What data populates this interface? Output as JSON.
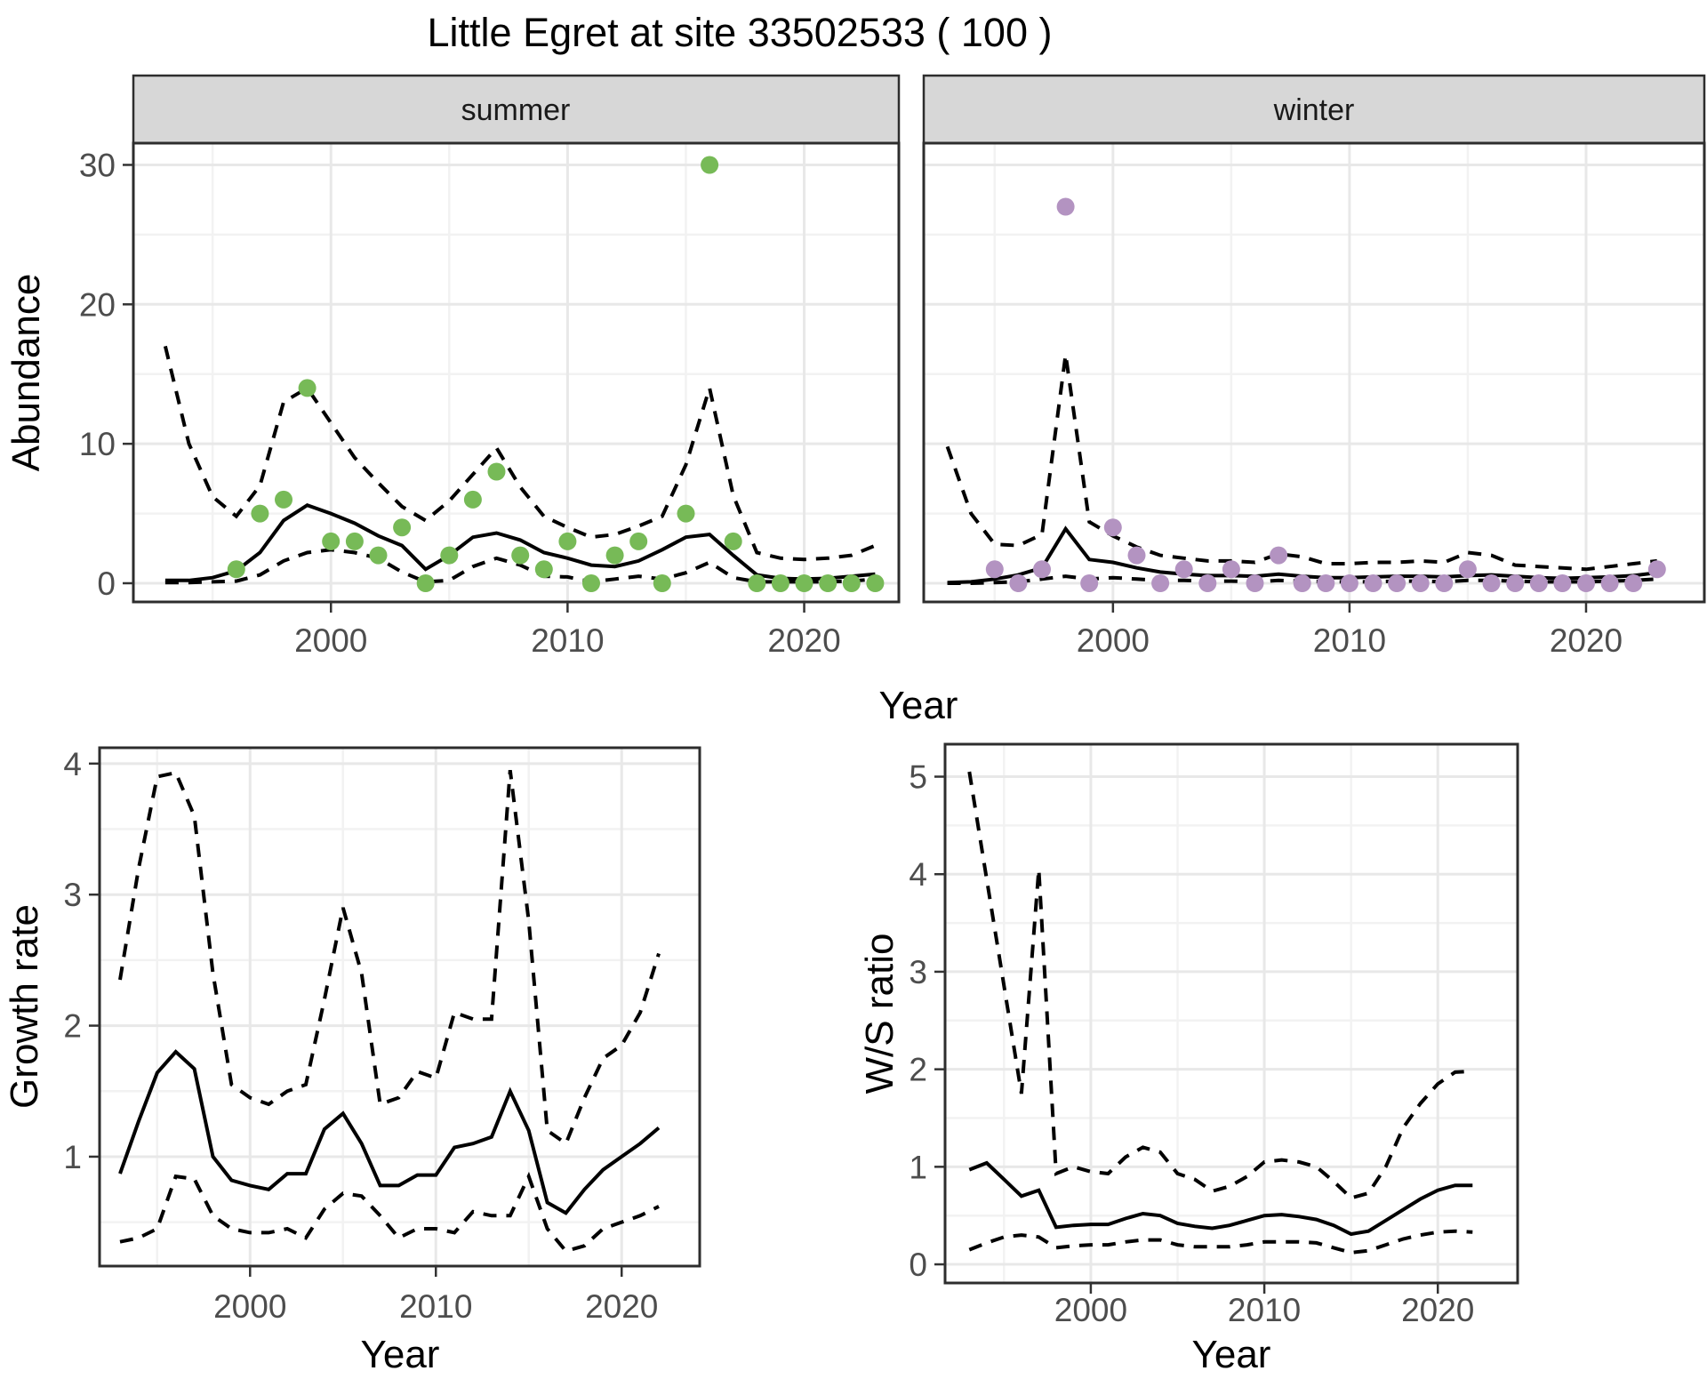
{
  "title": "Little Egret at site 33502533 ( 100 )",
  "colors": {
    "summer_points": "#77ba57",
    "winter_points": "#b393c1",
    "median_line": "#000000",
    "ci_line": "#000000",
    "strip_background": "#d7d7d7",
    "panel_border": "#2d2d2d",
    "grid_major": "#e8e8e8",
    "grid_minor": "#f2f2f2",
    "tick_text": "#4d4d4d"
  },
  "chart_data": [
    {
      "type": "line+scatter",
      "facet_label": "summer",
      "xlabel": "Year",
      "ylabel": "Abundance",
      "xticks": [
        2000,
        2010,
        2020
      ],
      "xminor": [
        1995,
        2005,
        2015
      ],
      "yticks": [
        0,
        10,
        20,
        30
      ],
      "yminor": [
        5,
        15,
        25
      ],
      "ylim": [
        0,
        30
      ],
      "point_color": "#77ba57",
      "points": {
        "x": [
          1996,
          1997,
          1998,
          1999,
          2000,
          2001,
          2002,
          2003,
          2004,
          2005,
          2006,
          2007,
          2008,
          2009,
          2010,
          2011,
          2012,
          2013,
          2014,
          2015,
          2016,
          2017,
          2018,
          2019,
          2020,
          2021,
          2022,
          2023
        ],
        "y": [
          1,
          5,
          6,
          14,
          3,
          3,
          2,
          4,
          0,
          2,
          6,
          8,
          2,
          1,
          3,
          0,
          2,
          3,
          0,
          5,
          30,
          3,
          0,
          0,
          0,
          0,
          0,
          0
        ]
      },
      "line_x": [
        1993,
        1994,
        1995,
        1996,
        1997,
        1998,
        1999,
        2000,
        2001,
        2002,
        2003,
        2004,
        2005,
        2006,
        2007,
        2008,
        2009,
        2010,
        2011,
        2012,
        2013,
        2014,
        2015,
        2016,
        2017,
        2018,
        2019,
        2020,
        2021,
        2022,
        2023
      ],
      "median": [
        0.2,
        0.2,
        0.4,
        0.9,
        2.2,
        4.5,
        5.6,
        5.0,
        4.3,
        3.4,
        2.7,
        1.0,
        2.0,
        3.3,
        3.6,
        3.1,
        2.2,
        1.8,
        1.3,
        1.2,
        1.6,
        2.4,
        3.3,
        3.5,
        2.0,
        0.6,
        0.35,
        0.3,
        0.35,
        0.5,
        0.65
      ],
      "upper": [
        17,
        10,
        6.2,
        4.8,
        7,
        13,
        14,
        11.5,
        9,
        7.2,
        5.5,
        4.5,
        5.9,
        7.8,
        9.7,
        6.9,
        4.8,
        4.0,
        3.3,
        3.5,
        4.1,
        4.8,
        8.5,
        14,
        6.3,
        2.2,
        1.8,
        1.7,
        1.8,
        2.0,
        2.7
      ],
      "lower": [
        0.05,
        0.05,
        0.1,
        0.15,
        0.6,
        1.6,
        2.2,
        2.4,
        2.2,
        1.8,
        0.8,
        0.1,
        0.2,
        1.2,
        1.8,
        1.3,
        0.5,
        0.45,
        0.1,
        0.3,
        0.5,
        0.3,
        0.75,
        1.5,
        0.4,
        0.1,
        0.1,
        0.1,
        0.1,
        0.15,
        0.3
      ]
    },
    {
      "type": "line+scatter",
      "facet_label": "winter",
      "xlabel": "Year",
      "ylabel": "Abundance",
      "xticks": [
        2000,
        2010,
        2020
      ],
      "xminor": [
        1995,
        2005,
        2015
      ],
      "yticks": [
        0,
        10,
        20,
        30
      ],
      "yminor": [
        5,
        15,
        25
      ],
      "ylim": [
        0,
        30
      ],
      "point_color": "#b393c1",
      "points": {
        "x": [
          1995,
          1996,
          1997,
          1998,
          1999,
          2000,
          2001,
          2002,
          2003,
          2004,
          2005,
          2006,
          2007,
          2008,
          2009,
          2010,
          2011,
          2012,
          2013,
          2014,
          2015,
          2016,
          2017,
          2018,
          2019,
          2020,
          2021,
          2022,
          2023
        ],
        "y": [
          1,
          0,
          1,
          27,
          0,
          4,
          2,
          0,
          1,
          0,
          1,
          0,
          2,
          0,
          0,
          0,
          0,
          0,
          0,
          0,
          1,
          0,
          0,
          0,
          0,
          0,
          0,
          0,
          1
        ]
      },
      "line_x": [
        1993,
        1994,
        1995,
        1996,
        1997,
        1998,
        1999,
        2000,
        2001,
        2002,
        2003,
        2004,
        2005,
        2006,
        2007,
        2008,
        2009,
        2010,
        2011,
        2012,
        2013,
        2014,
        2015,
        2016,
        2017,
        2018,
        2019,
        2020,
        2021,
        2022,
        2023
      ],
      "median": [
        0.05,
        0.1,
        0.3,
        0.6,
        1.1,
        3.9,
        1.7,
        1.5,
        1.1,
        0.8,
        0.65,
        0.55,
        0.55,
        0.5,
        0.65,
        0.5,
        0.4,
        0.4,
        0.45,
        0.5,
        0.5,
        0.45,
        0.55,
        0.6,
        0.5,
        0.4,
        0.35,
        0.4,
        0.45,
        0.55,
        0.75
      ],
      "upper": [
        9.8,
        5.0,
        2.8,
        2.7,
        3.5,
        16.4,
        4.4,
        3.4,
        2.6,
        2.0,
        1.8,
        1.6,
        1.6,
        1.5,
        2.1,
        1.9,
        1.4,
        1.4,
        1.5,
        1.5,
        1.6,
        1.5,
        2.2,
        2.0,
        1.3,
        1.2,
        1.1,
        1.0,
        1.2,
        1.4,
        1.6
      ],
      "lower": [
        0.0,
        0.0,
        0.05,
        0.1,
        0.3,
        0.5,
        0.3,
        0.4,
        0.3,
        0.2,
        0.2,
        0.15,
        0.15,
        0.1,
        0.2,
        0.15,
        0.1,
        0.1,
        0.1,
        0.15,
        0.15,
        0.1,
        0.2,
        0.2,
        0.15,
        0.1,
        0.1,
        0.1,
        0.15,
        0.2,
        0.3
      ]
    },
    {
      "type": "line",
      "facet_label": "",
      "xlabel": "Year",
      "ylabel": "Growth rate",
      "xticks": [
        2000,
        2010,
        2020
      ],
      "xminor": [
        1995,
        2005,
        2015
      ],
      "yticks": [
        1,
        2,
        3,
        4
      ],
      "yminor": [
        0.5,
        1.5,
        2.5,
        3.5
      ],
      "ylim": [
        0.16,
        4.12
      ],
      "line_x": [
        1993,
        1994,
        1995,
        1996,
        1997,
        1998,
        1999,
        2000,
        2001,
        2002,
        2003,
        2004,
        2005,
        2006,
        2007,
        2008,
        2009,
        2010,
        2011,
        2012,
        2013,
        2014,
        2015,
        2016,
        2017,
        2018,
        2019,
        2020,
        2021,
        2022
      ],
      "median": [
        0.87,
        1.27,
        1.64,
        1.8,
        1.67,
        1.0,
        0.82,
        0.78,
        0.75,
        0.87,
        0.87,
        1.21,
        1.33,
        1.1,
        0.78,
        0.78,
        0.86,
        0.86,
        1.07,
        1.1,
        1.15,
        1.5,
        1.2,
        0.65,
        0.57,
        0.75,
        0.9,
        1.0,
        1.1,
        1.22
      ],
      "upper": [
        2.35,
        3.2,
        3.9,
        3.93,
        3.6,
        2.4,
        1.55,
        1.45,
        1.4,
        1.5,
        1.55,
        2.2,
        2.9,
        2.4,
        1.4,
        1.45,
        1.65,
        1.6,
        2.1,
        2.05,
        2.05,
        3.95,
        2.8,
        1.2,
        1.1,
        1.45,
        1.75,
        1.85,
        2.1,
        2.55
      ],
      "lower": [
        0.35,
        0.38,
        0.45,
        0.85,
        0.83,
        0.55,
        0.45,
        0.42,
        0.42,
        0.45,
        0.38,
        0.6,
        0.72,
        0.7,
        0.55,
        0.38,
        0.45,
        0.45,
        0.42,
        0.58,
        0.55,
        0.55,
        0.85,
        0.45,
        0.28,
        0.32,
        0.45,
        0.5,
        0.55,
        0.62
      ]
    },
    {
      "type": "line",
      "facet_label": "",
      "xlabel": "Year",
      "ylabel": "W/S ratio",
      "xticks": [
        2000,
        2010,
        2020
      ],
      "xminor": [
        1995,
        2005,
        2015
      ],
      "yticks": [
        0,
        1,
        2,
        3,
        4,
        5
      ],
      "yminor": [
        0.5,
        1.5,
        2.5,
        3.5,
        4.5
      ],
      "ylim": [
        0,
        5.33
      ],
      "line_x": [
        1993,
        1994,
        1995,
        1996,
        1997,
        1998,
        1999,
        2000,
        2001,
        2002,
        2003,
        2004,
        2005,
        2006,
        2007,
        2008,
        2009,
        2010,
        2011,
        2012,
        2013,
        2014,
        2015,
        2016,
        2017,
        2018,
        2019,
        2020,
        2021,
        2022
      ],
      "median": [
        0.97,
        1.04,
        0.87,
        0.7,
        0.76,
        0.38,
        0.4,
        0.41,
        0.41,
        0.47,
        0.52,
        0.5,
        0.42,
        0.39,
        0.37,
        0.4,
        0.45,
        0.5,
        0.51,
        0.49,
        0.46,
        0.4,
        0.31,
        0.34,
        0.45,
        0.56,
        0.67,
        0.76,
        0.81,
        0.81
      ],
      "upper": [
        5.05,
        3.95,
        2.85,
        1.75,
        4.05,
        0.93,
        1.0,
        0.95,
        0.93,
        1.1,
        1.2,
        1.15,
        0.93,
        0.87,
        0.75,
        0.8,
        0.9,
        1.05,
        1.07,
        1.05,
        1.0,
        0.85,
        0.68,
        0.73,
        1.0,
        1.4,
        1.65,
        1.85,
        1.97,
        1.98
      ],
      "lower": [
        0.15,
        0.22,
        0.28,
        0.3,
        0.28,
        0.17,
        0.19,
        0.2,
        0.2,
        0.23,
        0.25,
        0.25,
        0.2,
        0.18,
        0.18,
        0.18,
        0.2,
        0.23,
        0.23,
        0.23,
        0.22,
        0.17,
        0.12,
        0.14,
        0.2,
        0.26,
        0.3,
        0.33,
        0.34,
        0.33
      ]
    }
  ]
}
